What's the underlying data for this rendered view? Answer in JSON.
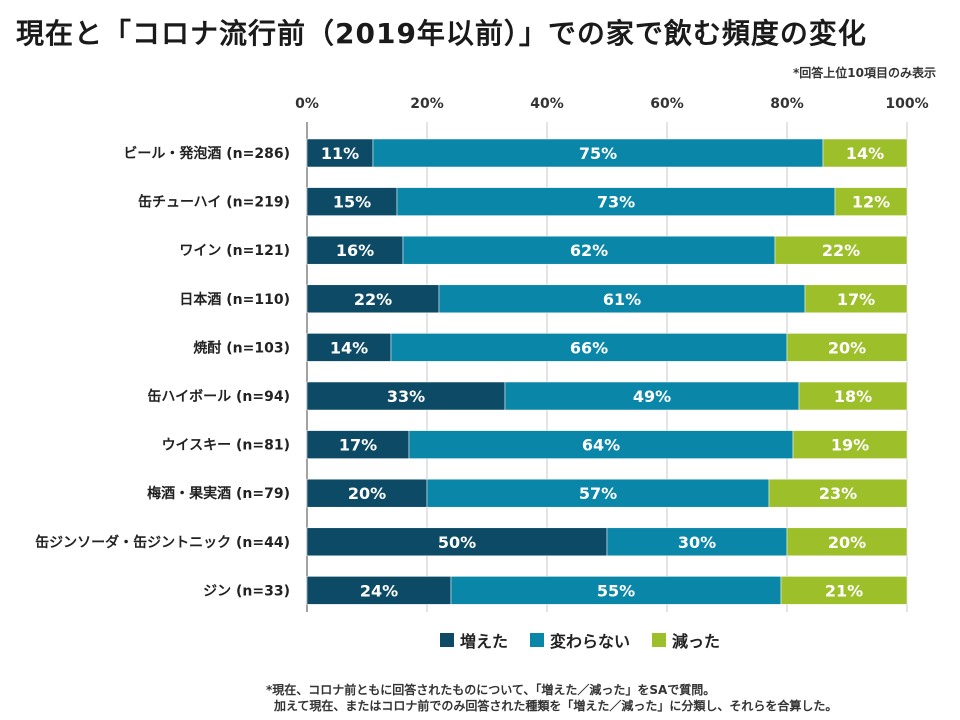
{
  "title": "現在と「コロナ流行前（2019年以前）」での家で飲む頻度の変化",
  "note_top": "*回答上位10項目のみ表示",
  "colors": {
    "increased": "#0c4a66",
    "unchanged": "#0a86a8",
    "decreased": "#9dbf2a"
  },
  "chart_data": {
    "type": "bar",
    "orientation": "horizontal",
    "stacked": "percent",
    "title": "現在と「コロナ流行前（2019年以前）」での家で飲む頻度の変化",
    "xlim": [
      0,
      100
    ],
    "x_ticks": [
      "0%",
      "20%",
      "40%",
      "60%",
      "80%",
      "100%"
    ],
    "categories": [
      "ビール・発泡酒 (n=286)",
      "缶チューハイ (n=219)",
      "ワイン (n=121)",
      "日本酒 (n=110)",
      "焼酎 (n=103)",
      "缶ハイボール (n=94)",
      "ウイスキー (n=81)",
      "梅酒・果実酒 (n=79)",
      "缶ジンソーダ・缶ジントニック (n=44)",
      "ジン (n=33)"
    ],
    "series": [
      {
        "name": "増えた",
        "values": [
          11,
          15,
          16,
          22,
          14,
          33,
          17,
          20,
          50,
          24
        ]
      },
      {
        "name": "変わらない",
        "values": [
          75,
          73,
          62,
          61,
          66,
          49,
          64,
          57,
          30,
          55
        ]
      },
      {
        "name": "減った",
        "values": [
          14,
          12,
          22,
          17,
          20,
          18,
          19,
          23,
          20,
          21
        ]
      }
    ]
  },
  "legend": {
    "increased": "増えた",
    "unchanged": "変わらない",
    "decreased": "減った"
  },
  "footnote": [
    "*現在、コロナ前ともに回答されたものについて、「増えた／減った」をSAで質問。",
    "加えて現在、またはコロナ前でのみ回答された種類を「増えた／減った」に分類し、それらを合算した。"
  ]
}
